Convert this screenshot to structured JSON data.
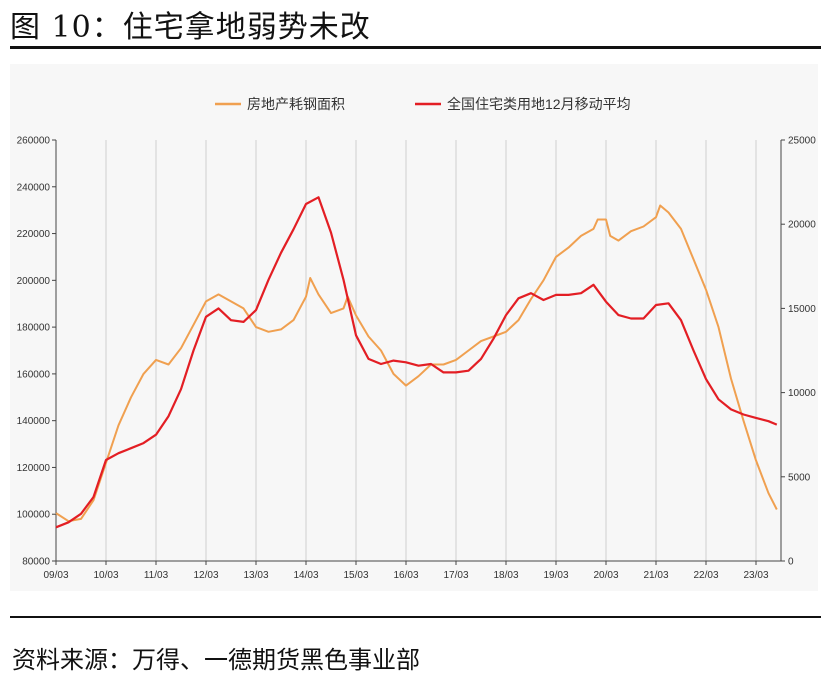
{
  "figure": {
    "title": "图 10：住宅拿地弱势未改",
    "source": "资料来源：万得、一德期货黑色事业部"
  },
  "colors": {
    "orange": "#f0a050",
    "red": "#e31e24",
    "grid": "#cfcfcf",
    "axis": "#444444"
  },
  "chart_data": {
    "type": "line",
    "legend_position": "top",
    "grid": "vertical",
    "x_tick_labels": [
      "09/03",
      "10/03",
      "11/03",
      "12/03",
      "13/03",
      "14/03",
      "15/03",
      "16/03",
      "17/03",
      "18/03",
      "19/03",
      "20/03",
      "21/03",
      "22/03",
      "23/03"
    ],
    "x_range": [
      "2009-03",
      "2023-09"
    ],
    "y_left": {
      "ylim": [
        80000,
        260000
      ],
      "ticks": [
        "80000",
        "100000",
        "120000",
        "140000",
        "160000",
        "180000",
        "200000",
        "220000",
        "240000",
        "260000"
      ]
    },
    "y_right": {
      "ylim": [
        0,
        25000
      ],
      "ticks": [
        "0",
        "5000",
        "10000",
        "15000",
        "20000",
        "25000"
      ]
    },
    "series": [
      {
        "name": "房地产耗钢面积",
        "axis": "left",
        "color": "#f0a050",
        "points": [
          [
            "2009-03",
            100500
          ],
          [
            "2009-06",
            97000
          ],
          [
            "2009-09",
            98000
          ],
          [
            "2009-12",
            106000
          ],
          [
            "2010-03",
            122000
          ],
          [
            "2010-06",
            138000
          ],
          [
            "2010-09",
            150000
          ],
          [
            "2010-12",
            160000
          ],
          [
            "2011-03",
            166000
          ],
          [
            "2011-06",
            164000
          ],
          [
            "2011-09",
            171000
          ],
          [
            "2011-12",
            181000
          ],
          [
            "2012-03",
            191000
          ],
          [
            "2012-06",
            194000
          ],
          [
            "2012-09",
            191000
          ],
          [
            "2012-12",
            188000
          ],
          [
            "2013-03",
            180000
          ],
          [
            "2013-06",
            178000
          ],
          [
            "2013-09",
            179000
          ],
          [
            "2013-12",
            183000
          ],
          [
            "2014-03",
            193000
          ],
          [
            "2014-04",
            201000
          ],
          [
            "2014-06",
            194000
          ],
          [
            "2014-09",
            186000
          ],
          [
            "2014-12",
            188000
          ],
          [
            "2015-01",
            193000
          ],
          [
            "2015-03",
            185000
          ],
          [
            "2015-06",
            176000
          ],
          [
            "2015-09",
            170000
          ],
          [
            "2015-12",
            160000
          ],
          [
            "2016-03",
            155000
          ],
          [
            "2016-06",
            159000
          ],
          [
            "2016-09",
            164000
          ],
          [
            "2016-12",
            164000
          ],
          [
            "2017-03",
            166000
          ],
          [
            "2017-06",
            170000
          ],
          [
            "2017-09",
            174000
          ],
          [
            "2017-12",
            176000
          ],
          [
            "2018-03",
            178000
          ],
          [
            "2018-06",
            183000
          ],
          [
            "2018-09",
            192000
          ],
          [
            "2018-12",
            200000
          ],
          [
            "2019-03",
            210000
          ],
          [
            "2019-06",
            214000
          ],
          [
            "2019-09",
            219000
          ],
          [
            "2019-12",
            222000
          ],
          [
            "2020-01",
            226000
          ],
          [
            "2020-03",
            226000
          ],
          [
            "2020-04",
            219000
          ],
          [
            "2020-06",
            217000
          ],
          [
            "2020-09",
            221000
          ],
          [
            "2020-12",
            223000
          ],
          [
            "2021-03",
            227000
          ],
          [
            "2021-04",
            232000
          ],
          [
            "2021-06",
            229000
          ],
          [
            "2021-09",
            222000
          ],
          [
            "2021-12",
            209000
          ],
          [
            "2022-03",
            196000
          ],
          [
            "2022-06",
            180000
          ],
          [
            "2022-09",
            158000
          ],
          [
            "2022-12",
            140000
          ],
          [
            "2023-03",
            123000
          ],
          [
            "2023-06",
            109000
          ],
          [
            "2023-08",
            102000
          ]
        ]
      },
      {
        "name": "全国住宅类用地12月移动平均",
        "axis": "right",
        "color": "#e31e24",
        "points": [
          [
            "2009-03",
            2000
          ],
          [
            "2009-06",
            2300
          ],
          [
            "2009-09",
            2800
          ],
          [
            "2009-12",
            3800
          ],
          [
            "2010-03",
            6000
          ],
          [
            "2010-06",
            6400
          ],
          [
            "2010-09",
            6700
          ],
          [
            "2010-12",
            7000
          ],
          [
            "2011-03",
            7500
          ],
          [
            "2011-06",
            8600
          ],
          [
            "2011-09",
            10200
          ],
          [
            "2011-12",
            12500
          ],
          [
            "2012-03",
            14500
          ],
          [
            "2012-06",
            15000
          ],
          [
            "2012-09",
            14300
          ],
          [
            "2012-12",
            14200
          ],
          [
            "2013-03",
            14900
          ],
          [
            "2013-06",
            16700
          ],
          [
            "2013-09",
            18300
          ],
          [
            "2013-12",
            19700
          ],
          [
            "2014-03",
            21200
          ],
          [
            "2014-06",
            21600
          ],
          [
            "2014-09",
            19500
          ],
          [
            "2014-12",
            16700
          ],
          [
            "2015-03",
            13400
          ],
          [
            "2015-06",
            12000
          ],
          [
            "2015-09",
            11700
          ],
          [
            "2015-12",
            11900
          ],
          [
            "2016-03",
            11800
          ],
          [
            "2016-06",
            11600
          ],
          [
            "2016-09",
            11700
          ],
          [
            "2016-12",
            11200
          ],
          [
            "2017-03",
            11200
          ],
          [
            "2017-06",
            11300
          ],
          [
            "2017-09",
            12000
          ],
          [
            "2017-12",
            13200
          ],
          [
            "2018-03",
            14600
          ],
          [
            "2018-06",
            15600
          ],
          [
            "2018-09",
            15900
          ],
          [
            "2018-12",
            15500
          ],
          [
            "2019-03",
            15800
          ],
          [
            "2019-06",
            15800
          ],
          [
            "2019-09",
            15900
          ],
          [
            "2019-12",
            16400
          ],
          [
            "2020-03",
            15400
          ],
          [
            "2020-06",
            14600
          ],
          [
            "2020-09",
            14400
          ],
          [
            "2020-12",
            14400
          ],
          [
            "2021-03",
            15200
          ],
          [
            "2021-06",
            15300
          ],
          [
            "2021-09",
            14300
          ],
          [
            "2021-12",
            12500
          ],
          [
            "2022-03",
            10800
          ],
          [
            "2022-06",
            9600
          ],
          [
            "2022-09",
            9000
          ],
          [
            "2022-12",
            8700
          ],
          [
            "2023-03",
            8500
          ],
          [
            "2023-06",
            8300
          ],
          [
            "2023-08",
            8100
          ]
        ]
      }
    ]
  }
}
